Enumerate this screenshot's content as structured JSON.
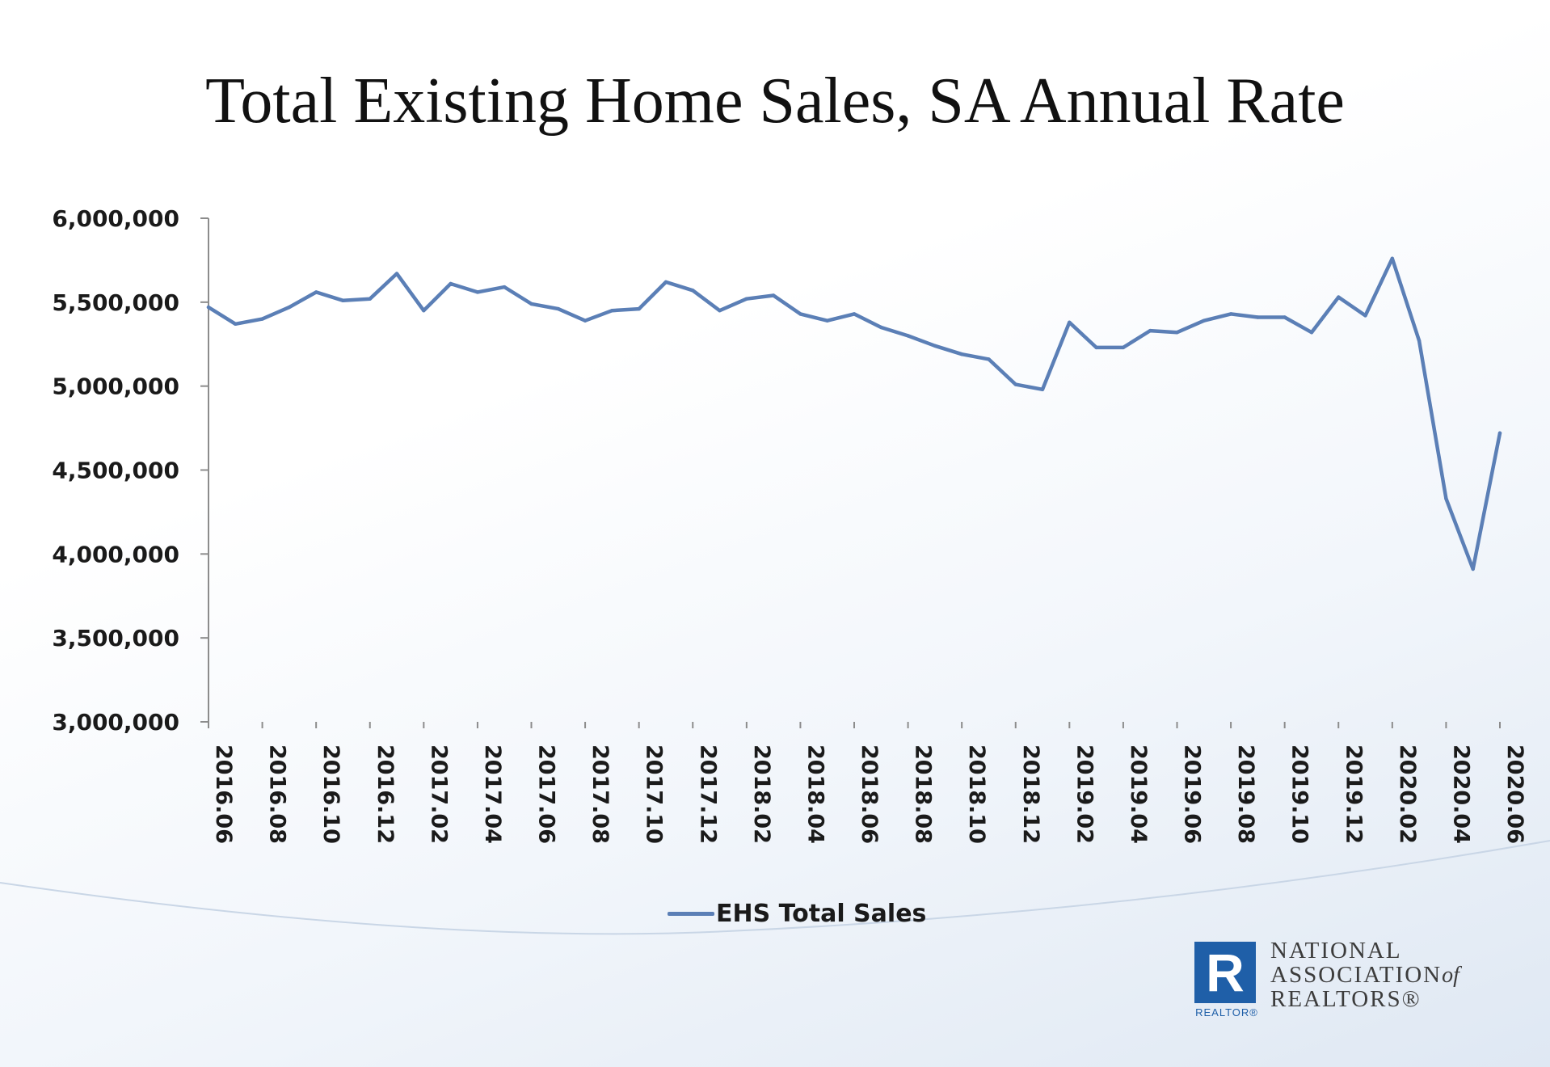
{
  "chart_data": {
    "type": "line",
    "title": "Total Existing Home Sales, SA Annual Rate",
    "xlabel": "",
    "ylabel": "",
    "ylim": [
      3000000,
      6000000
    ],
    "yticks": [
      3000000,
      3500000,
      4000000,
      4500000,
      5000000,
      5500000,
      6000000
    ],
    "ytick_labels": [
      "3,000,000",
      "3,500,000",
      "4,000,000",
      "4,500,000",
      "5,000,000",
      "5,500,000",
      "6,000,000"
    ],
    "x": [
      "2016.06",
      "2016.07",
      "2016.08",
      "2016.09",
      "2016.10",
      "2016.11",
      "2016.12",
      "2017.01",
      "2017.02",
      "2017.03",
      "2017.04",
      "2017.05",
      "2017.06",
      "2017.07",
      "2017.08",
      "2017.09",
      "2017.10",
      "2017.11",
      "2017.12",
      "2018.01",
      "2018.02",
      "2018.03",
      "2018.04",
      "2018.05",
      "2018.06",
      "2018.07",
      "2018.08",
      "2018.09",
      "2018.10",
      "2018.11",
      "2018.12",
      "2019.01",
      "2019.02",
      "2019.03",
      "2019.04",
      "2019.05",
      "2019.06",
      "2019.07",
      "2019.08",
      "2019.09",
      "2019.10",
      "2019.11",
      "2019.12",
      "2020.01",
      "2020.02",
      "2020.03",
      "2020.04",
      "2020.05",
      "2020.06"
    ],
    "xtick_labels": [
      "2016.06",
      "2016.08",
      "2016.10",
      "2016.12",
      "2017.02",
      "2017.04",
      "2017.06",
      "2017.08",
      "2017.10",
      "2017.12",
      "2018.02",
      "2018.04",
      "2018.06",
      "2018.08",
      "2018.10",
      "2018.12",
      "2019.02",
      "2019.04",
      "2019.06",
      "2019.08",
      "2019.10",
      "2019.12",
      "2020.02",
      "2020.04",
      "2020.06"
    ],
    "grid": false,
    "legend_position": "bottom",
    "series": [
      {
        "name": "EHS Total Sales",
        "color": "#5b7fb6",
        "values": [
          5470000,
          5370000,
          5400000,
          5470000,
          5560000,
          5510000,
          5520000,
          5670000,
          5450000,
          5610000,
          5560000,
          5590000,
          5490000,
          5460000,
          5390000,
          5450000,
          5460000,
          5620000,
          5570000,
          5450000,
          5520000,
          5540000,
          5430000,
          5390000,
          5430000,
          5350000,
          5300000,
          5240000,
          5190000,
          5160000,
          5010000,
          4980000,
          5380000,
          5230000,
          5230000,
          5330000,
          5320000,
          5390000,
          5430000,
          5410000,
          5410000,
          5320000,
          5530000,
          5420000,
          5760000,
          5270000,
          4330000,
          3910000,
          4720000
        ]
      }
    ]
  },
  "logo": {
    "mark": "R",
    "sub": "REALTOR®",
    "line1": "NATIONAL",
    "line2": "ASSOCIATION",
    "line2_of": "of",
    "line3": "REALTORS®"
  }
}
